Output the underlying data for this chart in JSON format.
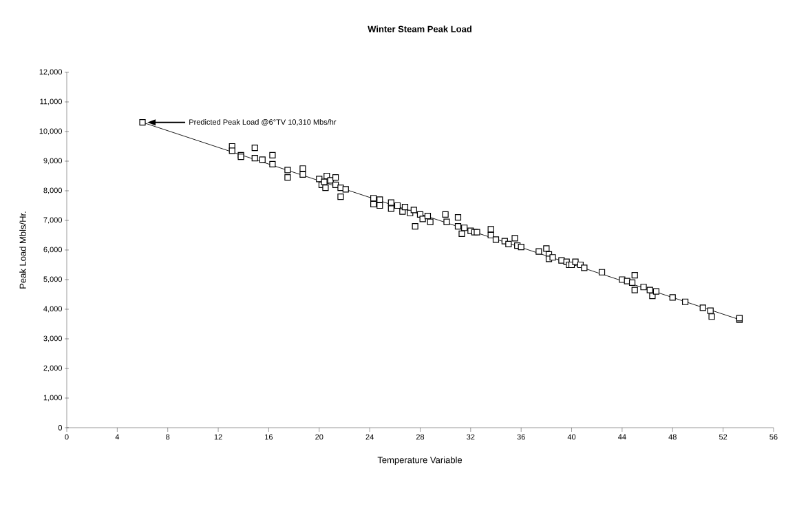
{
  "chart_data": {
    "type": "scatter",
    "title": "Winter Steam Peak Load",
    "xlabel": "Temperature Variable",
    "ylabel": "Peak Load Mbls/Hr.",
    "annotations": [
      "Predicted Peak Load  @6°TV 10,310 Mbs/hr"
    ],
    "series": [
      {
        "color": "#000000",
        "marker": "square",
        "x": [
          6,
          13.1,
          13.1,
          13.8,
          13.8,
          14.9,
          14.9,
          15.5,
          16.3,
          16.3,
          17.5,
          17.5,
          18.7,
          18.7,
          20,
          20.2,
          20.4,
          20.5,
          20.6,
          20.9,
          21.3,
          21.3,
          21.7,
          21.7,
          22.1,
          24.3,
          24.3,
          24.8,
          24.8,
          25.7,
          25.7,
          26.2,
          26.6,
          26.8,
          27.2,
          27.5,
          27.6,
          28,
          28.2,
          28.6,
          28.8,
          30,
          30.1,
          31,
          31,
          31.3,
          31.5,
          32,
          32.3,
          32.5,
          33.6,
          33.6,
          34,
          34.7,
          35,
          35.5,
          35.7,
          36,
          37.4,
          38,
          38.2,
          38.2,
          38.5,
          39.2,
          39.6,
          39.8,
          40,
          40.3,
          40.7,
          41,
          42.4,
          44,
          44.4,
          44.8,
          45,
          45,
          45.7,
          46.2,
          46.4,
          46.7,
          48,
          49,
          50.4,
          51,
          51.1,
          53.3,
          53.3
        ],
        "values": [
          10310,
          9500,
          9350,
          9200,
          9150,
          9450,
          9100,
          9050,
          9200,
          8900,
          8700,
          8450,
          8750,
          8550,
          8400,
          8200,
          8300,
          8100,
          8500,
          8350,
          8450,
          8200,
          8100,
          7800,
          8050,
          7750,
          7550,
          7700,
          7500,
          7600,
          7400,
          7500,
          7300,
          7450,
          7250,
          7350,
          6800,
          7200,
          7050,
          7150,
          6950,
          7200,
          6950,
          7100,
          6800,
          6550,
          6750,
          6650,
          6600,
          6600,
          6700,
          6500,
          6350,
          6300,
          6200,
          6400,
          6150,
          6100,
          5950,
          6050,
          5850,
          5700,
          5750,
          5650,
          5600,
          5500,
          5500,
          5600,
          5500,
          5400,
          5250,
          5000,
          4950,
          4900,
          5150,
          4650,
          4750,
          4650,
          4450,
          4600,
          4400,
          4250,
          4050,
          3950,
          3750,
          3650,
          3700
        ]
      },
      {
        "type": "line",
        "color": "#000000",
        "x": [
          6,
          53.3
        ],
        "values": [
          10310,
          3650
        ]
      }
    ],
    "grid": false,
    "xlim": [
      0,
      56
    ],
    "ylim": [
      0,
      12000
    ],
    "xticks": [
      0,
      4,
      8,
      12,
      16,
      20,
      24,
      28,
      32,
      36,
      40,
      44,
      48,
      52,
      56
    ],
    "yticks": [
      0,
      {
        "value": 1000,
        "label": "1,000"
      },
      {
        "value": 2000,
        "label": "2,000"
      },
      {
        "value": 3000,
        "label": "3,000"
      },
      {
        "value": 4000,
        "label": "4,000"
      },
      {
        "value": 5000,
        "label": "5,000"
      },
      {
        "value": 6000,
        "label": "6,000"
      },
      {
        "value": 7000,
        "label": "7,000"
      },
      {
        "value": 8000,
        "label": "8,000"
      },
      {
        "value": 9000,
        "label": "9,000"
      },
      {
        "value": 10000,
        "label": "10,000"
      },
      {
        "value": 11000,
        "label": "11,000"
      },
      {
        "value": 12000,
        "label": "12,000"
      }
    ]
  }
}
